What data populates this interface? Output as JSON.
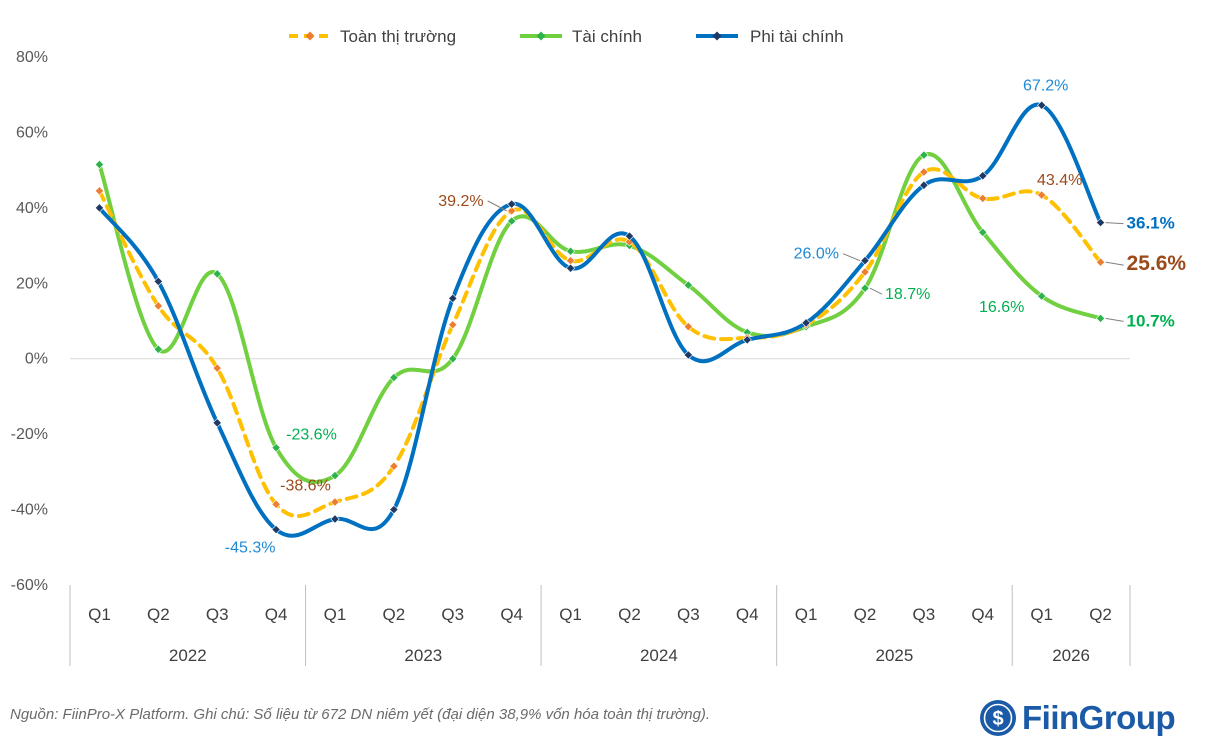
{
  "chart_data": {
    "type": "line",
    "quarters": [
      "Q1",
      "Q2",
      "Q3",
      "Q4",
      "Q1",
      "Q2",
      "Q3",
      "Q4",
      "Q1",
      "Q2",
      "Q3",
      "Q4",
      "Q1",
      "Q2",
      "Q3",
      "Q4",
      "Q1",
      "Q2"
    ],
    "years": [
      "2022",
      "2023",
      "2024",
      "2025",
      "2026"
    ],
    "year_spans": [
      4,
      4,
      4,
      4,
      2
    ],
    "ylim": [
      -60,
      80
    ],
    "yticks": [
      80,
      60,
      40,
      20,
      0,
      -20,
      -40,
      -60
    ],
    "ytick_labels": [
      "80%",
      "60%",
      "40%",
      "20%",
      "0%",
      "-20%",
      "-40%",
      "-60%"
    ],
    "legend_position": "top-center",
    "series": [
      {
        "name": "Toàn thị trường",
        "color": "#ffc000",
        "marker_color": "#ed7d31",
        "style": "dashed",
        "values": [
          44.5,
          14.0,
          -2.5,
          -38.6,
          -38.0,
          -28.5,
          9.0,
          39.2,
          26.0,
          31.0,
          8.5,
          5.5,
          9.0,
          23.0,
          49.5,
          42.5,
          43.4,
          25.6
        ]
      },
      {
        "name": "Tài chính",
        "color": "#70d040",
        "marker_color": "#2db34a",
        "style": "solid",
        "values": [
          51.5,
          2.5,
          22.5,
          -23.6,
          -31.0,
          -5.0,
          0.0,
          36.5,
          28.5,
          30.0,
          19.5,
          7.0,
          8.5,
          18.7,
          54.0,
          33.5,
          16.6,
          10.7
        ]
      },
      {
        "name": "Phi tài chính",
        "color": "#0070c0",
        "marker_color": "#1f3864",
        "style": "solid",
        "values": [
          40.0,
          20.5,
          -17.0,
          -45.3,
          -42.5,
          -40.0,
          16.0,
          41.0,
          24.0,
          32.5,
          1.0,
          5.0,
          9.5,
          26.0,
          46.0,
          48.5,
          67.2,
          36.1
        ]
      }
    ],
    "annotations": [
      {
        "text": "-23.6%",
        "series": 1,
        "index": 3,
        "color": "#00b050",
        "bold": false
      },
      {
        "text": "-38.6%",
        "series": 0,
        "index": 3,
        "color": "#9c4a1a",
        "bold": false
      },
      {
        "text": "-45.3%",
        "series": 2,
        "index": 3,
        "color": "#1f8ad6",
        "bold": false
      },
      {
        "text": "39.2%",
        "series": 0,
        "index": 7,
        "color": "#9c4a1a",
        "bold": false
      },
      {
        "text": "26.0%",
        "series": 2,
        "index": 13,
        "color": "#1f8ad6",
        "bold": false
      },
      {
        "text": "18.7%",
        "series": 1,
        "index": 13,
        "color": "#00b050",
        "bold": false
      },
      {
        "text": "67.2%",
        "series": 2,
        "index": 16,
        "color": "#1f8ad6",
        "bold": false
      },
      {
        "text": "43.4%",
        "series": 0,
        "index": 16,
        "color": "#9c4a1a",
        "bold": false
      },
      {
        "text": "16.6%",
        "series": 1,
        "index": 16,
        "color": "#00b050",
        "bold": false
      },
      {
        "text": "36.1%",
        "series": 2,
        "index": 17,
        "color": "#0070c0",
        "bold": true
      },
      {
        "text": "25.6%",
        "series": 0,
        "index": 17,
        "color": "#9c4a1a",
        "bold": true
      },
      {
        "text": "10.7%",
        "series": 1,
        "index": 17,
        "color": "#00b050",
        "bold": true
      }
    ]
  },
  "footer": {
    "source_note": "Nguồn: FiinPro-X Platform. Ghi chú: Số liệu từ 672 DN niêm yết (đại diện 38,9% vốn hóa toàn thị trường).",
    "logo_text": "FiinGroup"
  }
}
